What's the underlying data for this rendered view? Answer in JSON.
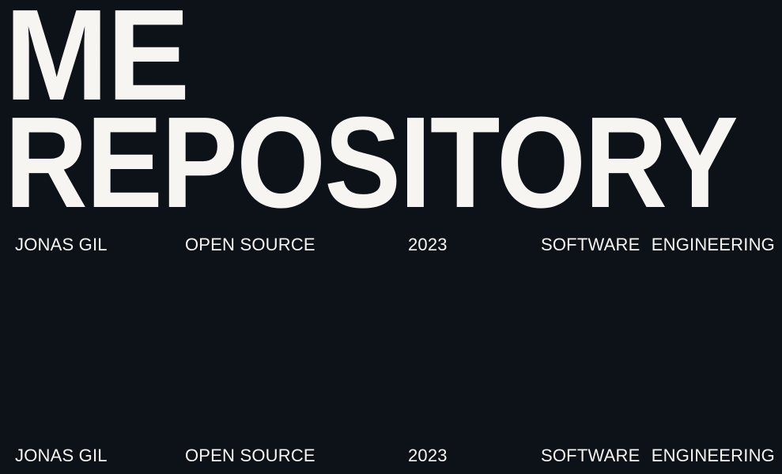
{
  "hero": {
    "line1": "ME",
    "line2": "REPOSITORY"
  },
  "meta": {
    "author": "JONAS GIL",
    "type": "OPEN SOURCE",
    "year": "2023",
    "field": "SOFTWARE  ENGINEERING"
  },
  "colors": {
    "background": "#0d1118",
    "text": "#f7f5f2"
  }
}
